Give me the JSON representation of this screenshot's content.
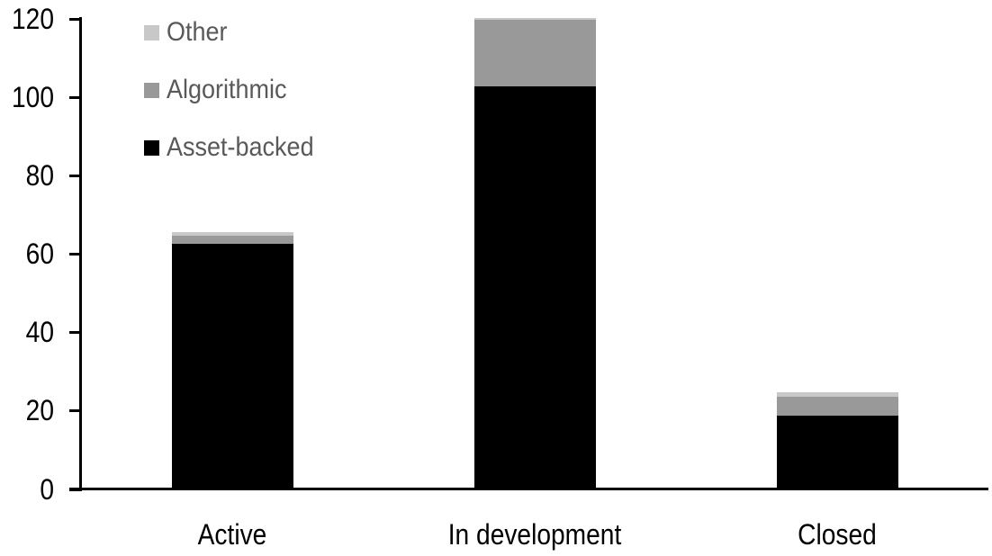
{
  "chart_data": {
    "type": "bar",
    "stacked": true,
    "title": "",
    "xlabel": "",
    "ylabel": "",
    "categories": [
      "Active",
      "In development",
      "Closed"
    ],
    "series": [
      {
        "name": "Asset-backed",
        "color": "#000000",
        "values": [
          63,
          103,
          19
        ]
      },
      {
        "name": "Algorithmic",
        "color": "#999999",
        "values": [
          2,
          17,
          5
        ]
      },
      {
        "name": "Other",
        "color": "#c8c8c8",
        "values": [
          1,
          0.5,
          1
        ]
      }
    ],
    "ylim": [
      0,
      120
    ],
    "yticks": [
      0,
      20,
      40,
      60,
      80,
      100,
      120
    ],
    "grid": false,
    "legend_position": "top-left",
    "legend_items": [
      {
        "label": "Other",
        "color": "#c8c8c8"
      },
      {
        "label": "Algorithmic",
        "color": "#999999"
      },
      {
        "label": "Asset-backed",
        "color": "#000000"
      }
    ]
  },
  "style": {
    "axis_color": "#000000",
    "tick_label_color": "#000000",
    "category_label_color": "#000000",
    "legend_text_color": "#595959",
    "background": "#ffffff"
  }
}
